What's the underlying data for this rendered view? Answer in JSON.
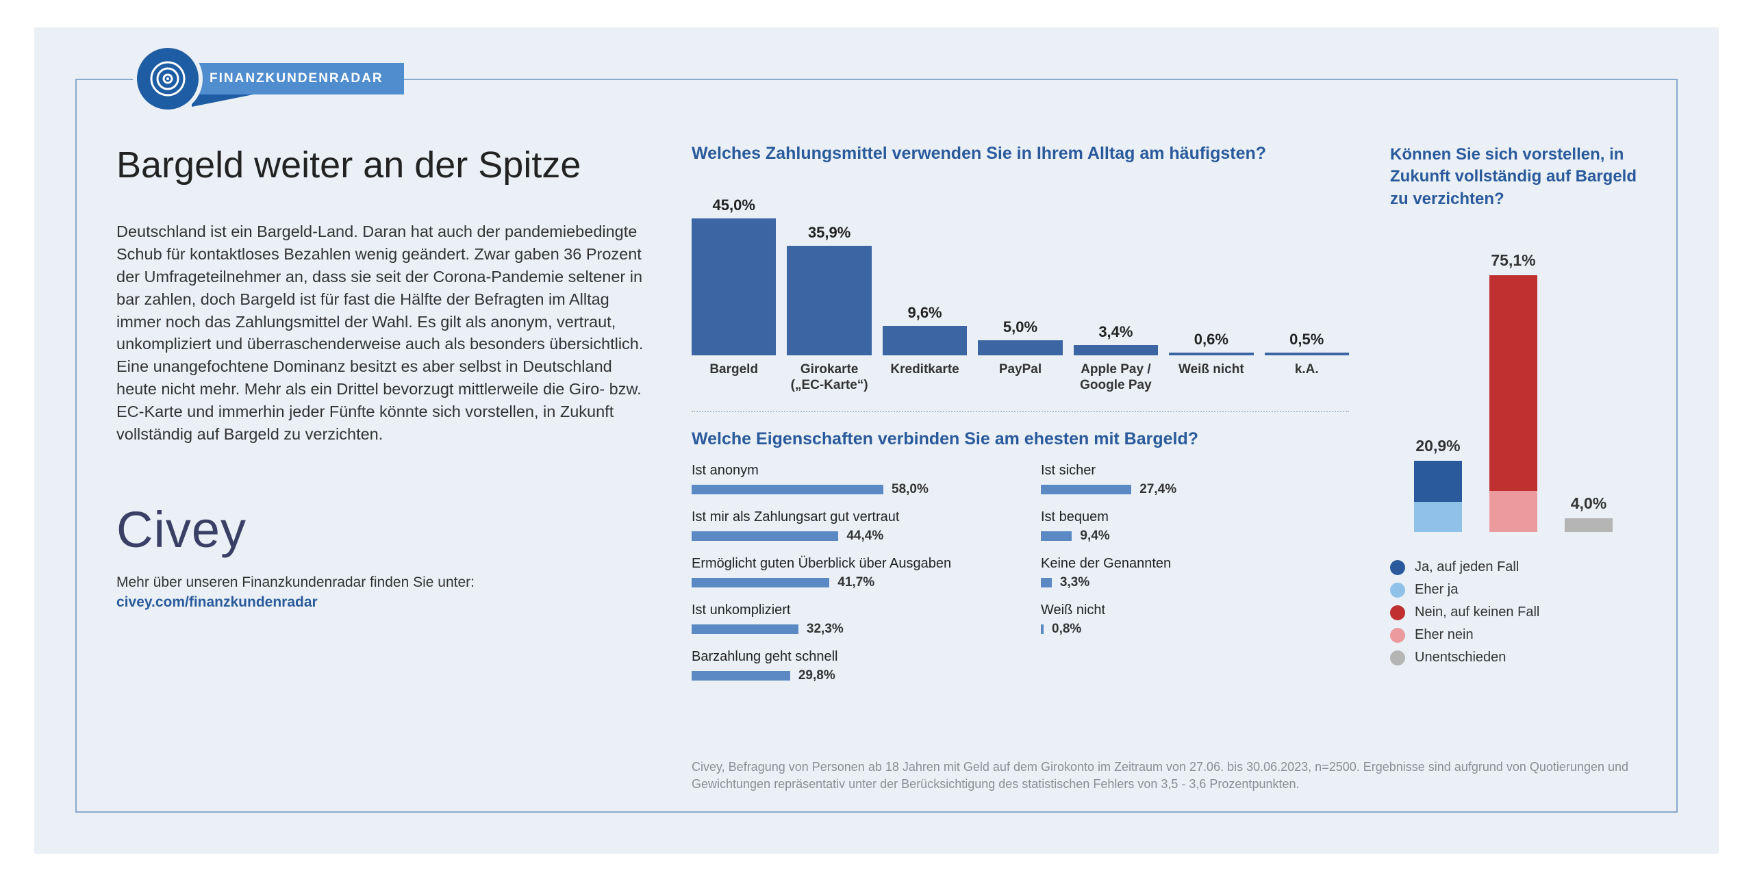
{
  "header": {
    "badge": "FINANZKUNDENRADAR"
  },
  "left": {
    "title": "Bargeld weiter an der Spitze",
    "body": "Deutschland ist ein Bargeld-Land. Daran hat auch der pandemiebedingte Schub für kontaktloses Bezahlen wenig geändert. Zwar gaben 36 Prozent der Umfrageteilnehmer an, dass sie seit der Corona-Pandemie seltener in bar zahlen, doch Bargeld ist für fast die Hälfte der Befragten im Alltag immer noch das Zahlungsmittel der Wahl. Es gilt als anonym, vertraut, unkompliziert und überraschender­weise auch als besonders übersichtlich. Eine unangefoch­tene Dominanz besitzt es aber selbst in Deutschland heute nicht mehr. Mehr als ein Drittel bevorzugt mittlerweile die Giro- bzw. EC-Karte und immerhin jeder Fünfte könnte sich vorstellen, in Zukunft vollständig auf Bargeld zu verzichten.",
    "brand": "Civey",
    "sub_line": "Mehr über unseren Finanzkundenradar finden Sie unter:",
    "sub_link": "civey.com/finanzkundenradar"
  },
  "chart1": {
    "type": "bar",
    "question": "Welches Zahlungsmittel verwenden Sie in Ihrem Alltag am häufigsten?",
    "bar_color": "#3b66a3",
    "max": 45,
    "items": [
      {
        "label": "Bargeld",
        "value": 45.0,
        "display": "45,0%"
      },
      {
        "label": "Girokarte\n(„EC-Karte“)",
        "value": 35.9,
        "display": "35,9%"
      },
      {
        "label": "Kreditkarte",
        "value": 9.6,
        "display": "9,6%"
      },
      {
        "label": "PayPal",
        "value": 5.0,
        "display": "5,0%"
      },
      {
        "label": "Apple Pay /\nGoogle Pay",
        "value": 3.4,
        "display": "3,4%"
      },
      {
        "label": "Weiß nicht",
        "value": 0.6,
        "display": "0,6%"
      },
      {
        "label": "k.A.",
        "value": 0.5,
        "display": "0,5%"
      }
    ]
  },
  "chart2": {
    "type": "hbar",
    "question": "Welche Eigenschaften verbinden Sie am ehesten mit Bargeld?",
    "bar_color": "#5a89c4",
    "max": 58,
    "left": [
      {
        "label": "Ist anonym",
        "value": 58.0,
        "display": "58,0%"
      },
      {
        "label": "Ist mir als Zahlungsart gut vertraut",
        "value": 44.4,
        "display": "44,4%"
      },
      {
        "label": "Ermöglicht guten Überblick über Ausgaben",
        "value": 41.7,
        "display": "41,7%"
      },
      {
        "label": "Ist unkompliziert",
        "value": 32.3,
        "display": "32,3%"
      },
      {
        "label": "Barzahlung geht schnell",
        "value": 29.8,
        "display": "29,8%"
      }
    ],
    "right": [
      {
        "label": "Ist sicher",
        "value": 27.4,
        "display": "27,4%"
      },
      {
        "label": "Ist bequem",
        "value": 9.4,
        "display": "9,4%"
      },
      {
        "label": "Keine der Genannten",
        "value": 3.3,
        "display": "3,3%"
      },
      {
        "label": "Weiß nicht",
        "value": 0.8,
        "display": "0,8%"
      }
    ]
  },
  "chart3": {
    "type": "stacked-bar",
    "question": "Können Sie sich vorstellen, in Zukunft vollständig auf Bargeld zu verzichten?",
    "scale_max": 80,
    "stacks": [
      {
        "total_display": "20,9%",
        "segments": [
          {
            "color": "#2a5a9c",
            "value": 12.0
          },
          {
            "color": "#90c1e8",
            "value": 8.9
          }
        ]
      },
      {
        "total_display": "75,1%",
        "segments": [
          {
            "color": "#c13030",
            "value": 63.0
          },
          {
            "color": "#eb9b9e",
            "value": 12.1
          }
        ]
      },
      {
        "total_display": "4,0%",
        "segments": [
          {
            "color": "#b5b5b5",
            "value": 4.0
          }
        ]
      }
    ],
    "legend": [
      {
        "color": "#2a5a9c",
        "label": "Ja, auf jeden Fall"
      },
      {
        "color": "#90c1e8",
        "label": "Eher ja"
      },
      {
        "color": "#c13030",
        "label": "Nein, auf keinen Fall"
      },
      {
        "color": "#eb9b9e",
        "label": "Eher nein"
      },
      {
        "color": "#b5b5b5",
        "label": "Unentschieden"
      }
    ]
  },
  "footnote": "Civey, Befragung von Personen ab 18 Jahren mit Geld auf dem Girokonto im Zeitraum von 27.06. bis 30.06.2023, n=2500. Ergebnisse sind aufgrund von Quotierungen und Gewichtungen repräsentativ unter der Berücksichtigung des statistischen Fehlers von 3,5 - 3,6 Prozentpunkten."
}
